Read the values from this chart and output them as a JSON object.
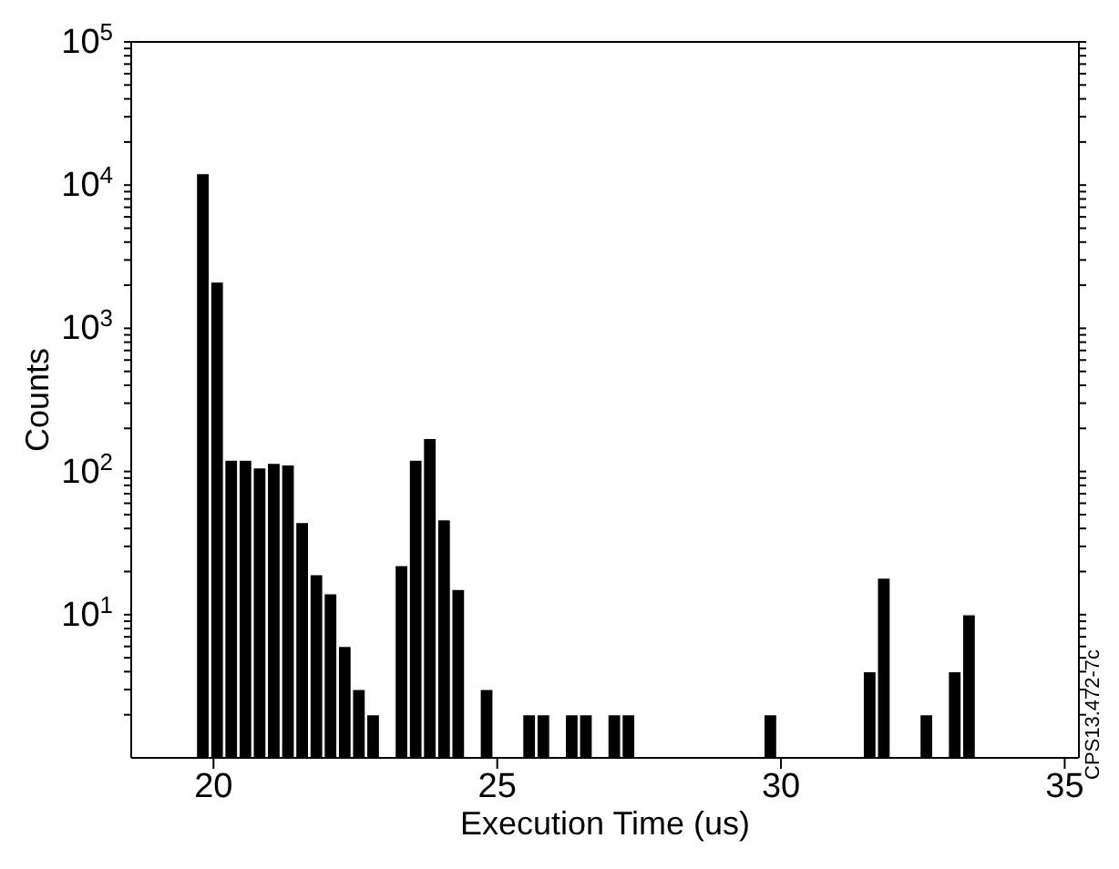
{
  "chart_data": {
    "type": "histogram",
    "xlabel": "Execution Time (us)",
    "ylabel": "Counts",
    "log": "y",
    "color": "#000000",
    "bins": [
      19.7,
      19.95,
      20.2,
      20.45,
      20.7,
      20.95,
      21.2,
      21.45,
      21.7,
      21.95,
      22.2,
      22.45,
      22.7,
      22.95,
      23.2,
      23.45,
      23.7,
      23.95,
      24.2,
      24.45,
      24.7,
      24.95,
      25.2,
      25.45,
      25.7,
      25.95,
      26.2,
      26.45,
      26.7,
      26.95,
      27.2,
      27.45,
      27.7,
      27.95,
      28.2,
      28.45,
      28.7,
      28.95,
      29.2,
      29.45,
      29.7,
      29.95,
      30.2,
      30.45,
      30.7,
      30.95,
      31.2,
      31.45,
      31.7,
      31.95,
      32.2,
      32.45,
      32.7,
      32.95,
      33.2,
      33.45
    ],
    "values": [
      12000,
      2100,
      120,
      120,
      106,
      114,
      111,
      44,
      19,
      14,
      6,
      3,
      2,
      null,
      22,
      120,
      170,
      46,
      15,
      null,
      3,
      null,
      null,
      2,
      2,
      null,
      2,
      2,
      null,
      2,
      2,
      null,
      null,
      null,
      null,
      null,
      null,
      null,
      null,
      null,
      2,
      null,
      null,
      null,
      null,
      null,
      null,
      4,
      18,
      null,
      null,
      2,
      null,
      4,
      10
    ],
    "xlim": [
      18.55,
      35.25
    ],
    "xticks": [
      20,
      25,
      30,
      35
    ],
    "ylim": [
      1,
      100000
    ],
    "yticks": [
      {
        "value": 2,
        "label": null
      },
      {
        "value": 3,
        "label": null
      },
      {
        "value": 4,
        "label": null
      },
      {
        "value": 5,
        "label": null
      },
      {
        "value": 6,
        "label": null
      },
      {
        "value": 7,
        "label": null
      },
      {
        "value": 8,
        "label": null
      },
      {
        "value": 9,
        "label": null
      },
      {
        "value": 10,
        "label": "10$^{1}$"
      },
      {
        "value": 20,
        "label": null
      },
      {
        "value": 30,
        "label": null
      },
      {
        "value": 40,
        "label": null
      },
      {
        "value": 50,
        "label": null
      },
      {
        "value": 60,
        "label": null
      },
      {
        "value": 70,
        "label": null
      },
      {
        "value": 80,
        "label": null
      },
      {
        "value": 90,
        "label": null
      },
      {
        "value": 100,
        "label": "10$^{2}$"
      },
      {
        "value": 200,
        "label": null
      },
      {
        "value": 300,
        "label": null
      },
      {
        "value": 400,
        "label": null
      },
      {
        "value": 500,
        "label": null
      },
      {
        "value": 600,
        "label": null
      },
      {
        "value": 700,
        "label": null
      },
      {
        "value": 800,
        "label": null
      },
      {
        "value": 900,
        "label": null
      },
      {
        "value": 1000,
        "label": "10$^{3}$"
      },
      {
        "value": 2000,
        "label": null
      },
      {
        "value": 3000,
        "label": null
      },
      {
        "value": 4000,
        "label": null
      },
      {
        "value": 5000,
        "label": null
      },
      {
        "value": 6000,
        "label": null
      },
      {
        "value": 7000,
        "label": null
      },
      {
        "value": 8000,
        "label": null
      },
      {
        "value": 9000,
        "label": null
      },
      {
        "value": 10000,
        "label": "10$^{4}$"
      },
      {
        "value": 20000,
        "label": null
      },
      {
        "value": 30000,
        "label": null
      },
      {
        "value": 40000,
        "label": null
      },
      {
        "value": 50000,
        "label": null
      },
      {
        "value": 60000,
        "label": null
      },
      {
        "value": 70000,
        "label": null
      },
      {
        "value": 80000,
        "label": null
      },
      {
        "value": 90000,
        "label": null
      },
      {
        "value": 100000,
        "label": "10$^{5}$"
      }
    ],
    "annotations": [
      "CPS13.472-7c"
    ]
  }
}
